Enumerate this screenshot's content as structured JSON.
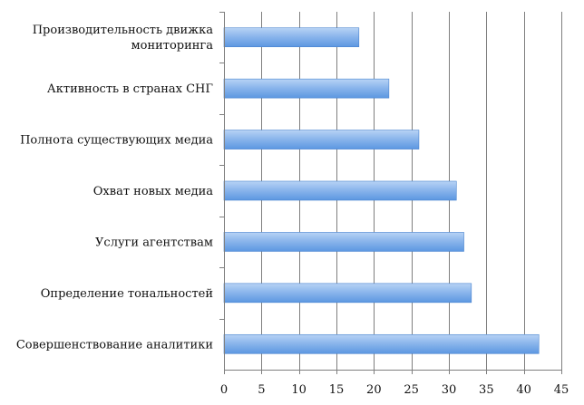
{
  "chart_data": {
    "type": "bar",
    "orientation": "horizontal",
    "title": "",
    "xlabel": "",
    "ylabel": "",
    "categories": [
      [
        "Производительность движка",
        "мониторинга"
      ],
      [
        "Активность в странах СНГ"
      ],
      [
        "Полнота существующих медиа"
      ],
      [
        "Охват новых медиа"
      ],
      [
        "Услуги агентствам"
      ],
      [
        "Определение тональностей"
      ],
      [
        "Совершенствование аналитики"
      ]
    ],
    "values": [
      18,
      22,
      26,
      31,
      32,
      33,
      42
    ],
    "xlim": [
      0,
      45
    ],
    "xticks": [
      0,
      5,
      10,
      15,
      20,
      25,
      30,
      35,
      40,
      45
    ],
    "grid": "vertical",
    "legend": "none",
    "colors": {
      "bar_top": "#b8d3f5",
      "bar_bottom": "#5c97e1",
      "bar_stroke": "#4a84cf",
      "grid": "#7f7f7f",
      "axis": "#7f7f7f"
    }
  }
}
